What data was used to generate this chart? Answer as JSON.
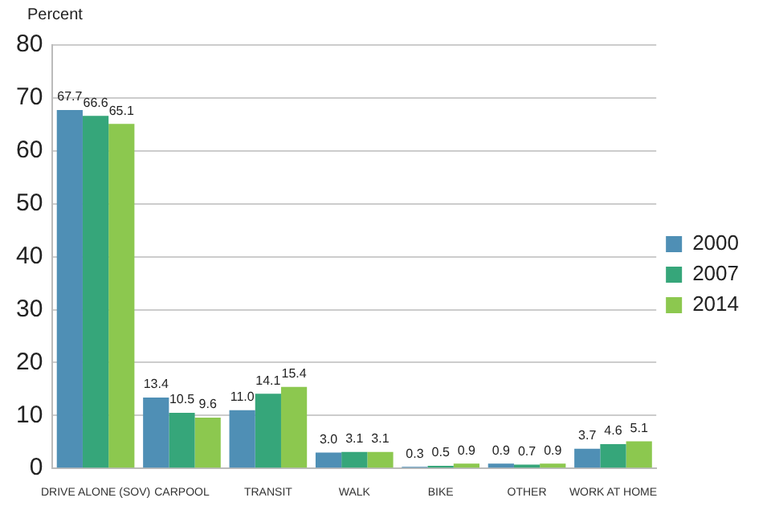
{
  "chart_data": {
    "type": "bar",
    "ylabel": "Percent",
    "categories": [
      "DRIVE ALONE (SOV)",
      "CARPOOL",
      "TRANSIT",
      "WALK",
      "BIKE",
      "OTHER",
      "WORK AT HOME"
    ],
    "series": [
      {
        "name": "2000",
        "color": "#4f8fb5",
        "values": [
          67.7,
          13.4,
          11.0,
          3.0,
          0.3,
          0.9,
          3.7
        ],
        "value_labels": [
          "67.7",
          "13.4",
          "11.0",
          "3.0",
          "0.3",
          "0.9",
          "3.7"
        ]
      },
      {
        "name": "2007",
        "color": "#36a67a",
        "values": [
          66.6,
          10.5,
          14.1,
          3.1,
          0.5,
          0.7,
          4.6
        ],
        "value_labels": [
          "66.6",
          "10.5",
          "14.1",
          "3.1",
          "0.5",
          "0.7",
          "4.6"
        ]
      },
      {
        "name": "2014",
        "color": "#8cc84f",
        "values": [
          65.1,
          9.6,
          15.4,
          3.1,
          0.9,
          0.9,
          5.1
        ],
        "value_labels": [
          "65.1",
          "9.6",
          "15.4",
          "3.1",
          "0.9",
          "0.9",
          "5.1"
        ]
      }
    ],
    "ylim": [
      0,
      80
    ],
    "yticks": [
      0,
      10,
      20,
      30,
      40,
      50,
      60,
      70,
      80
    ],
    "grid": "y",
    "legend": "right"
  }
}
